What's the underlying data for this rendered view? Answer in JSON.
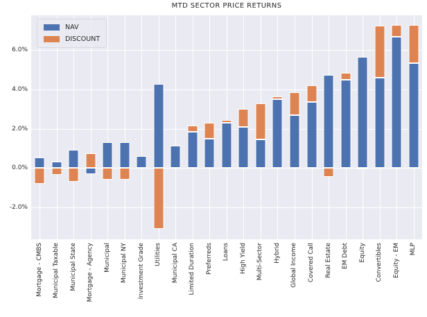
{
  "title": "MTD SECTOR PRICE RETURNS",
  "legend": {
    "items": [
      {
        "label": "NAV",
        "color": "#4C72B0"
      },
      {
        "label": "DISCOUNT",
        "color": "#DD8452"
      }
    ]
  },
  "colors": {
    "nav": "#4C72B0",
    "discount": "#DD8452",
    "plot_background": "#EAEAF2",
    "grid": "#FFFFFF",
    "text": "#262626"
  },
  "chart_data": {
    "type": "bar",
    "stacked": true,
    "title": "MTD SECTOR PRICE RETURNS",
    "xlabel": "",
    "ylabel": "",
    "grid": true,
    "legend_position": "upper left",
    "ylim": [
      -3.63,
      7.78
    ],
    "yticks": [
      6,
      4,
      2,
      0,
      -2
    ],
    "ytick_labels": [
      "6.0%",
      "4.0%",
      "2.0%",
      "0.0%",
      "-2.0%"
    ],
    "categories": [
      "Mortgage - CMBS",
      "Municipal Taxable",
      "Municipal State",
      "Mortgage - Agency",
      "Municipal",
      "Municipal NY",
      "Investment Grade",
      "Utilities",
      "Municipal CA",
      "Limited Duration",
      "Preferreds",
      "Loans",
      "High Yield",
      "Multi-Sector",
      "Hybrid",
      "Global Income",
      "Covered Call",
      "Real Estate",
      "EM Debt",
      "Equity",
      "Convertibles",
      "Equity - EM",
      "MLP"
    ],
    "series": [
      {
        "name": "NAV",
        "color": "#4C72B0",
        "values": [
          0.55,
          0.33,
          0.93,
          -0.3,
          1.3,
          1.33,
          0.62,
          4.3,
          1.13,
          1.85,
          1.5,
          2.3,
          2.1,
          1.45,
          3.5,
          2.7,
          3.35,
          4.75,
          4.5,
          5.65,
          4.6,
          6.7,
          5.35
        ]
      },
      {
        "name": "DISCOUNT",
        "color": "#DD8452",
        "values": [
          -0.8,
          -0.35,
          -0.7,
          0.75,
          -0.6,
          -0.6,
          0.0,
          -3.1,
          0.0,
          0.3,
          0.8,
          0.15,
          0.9,
          1.85,
          0.15,
          1.15,
          0.85,
          -0.45,
          0.35,
          -0.07,
          2.65,
          0.6,
          1.95
        ]
      }
    ]
  }
}
